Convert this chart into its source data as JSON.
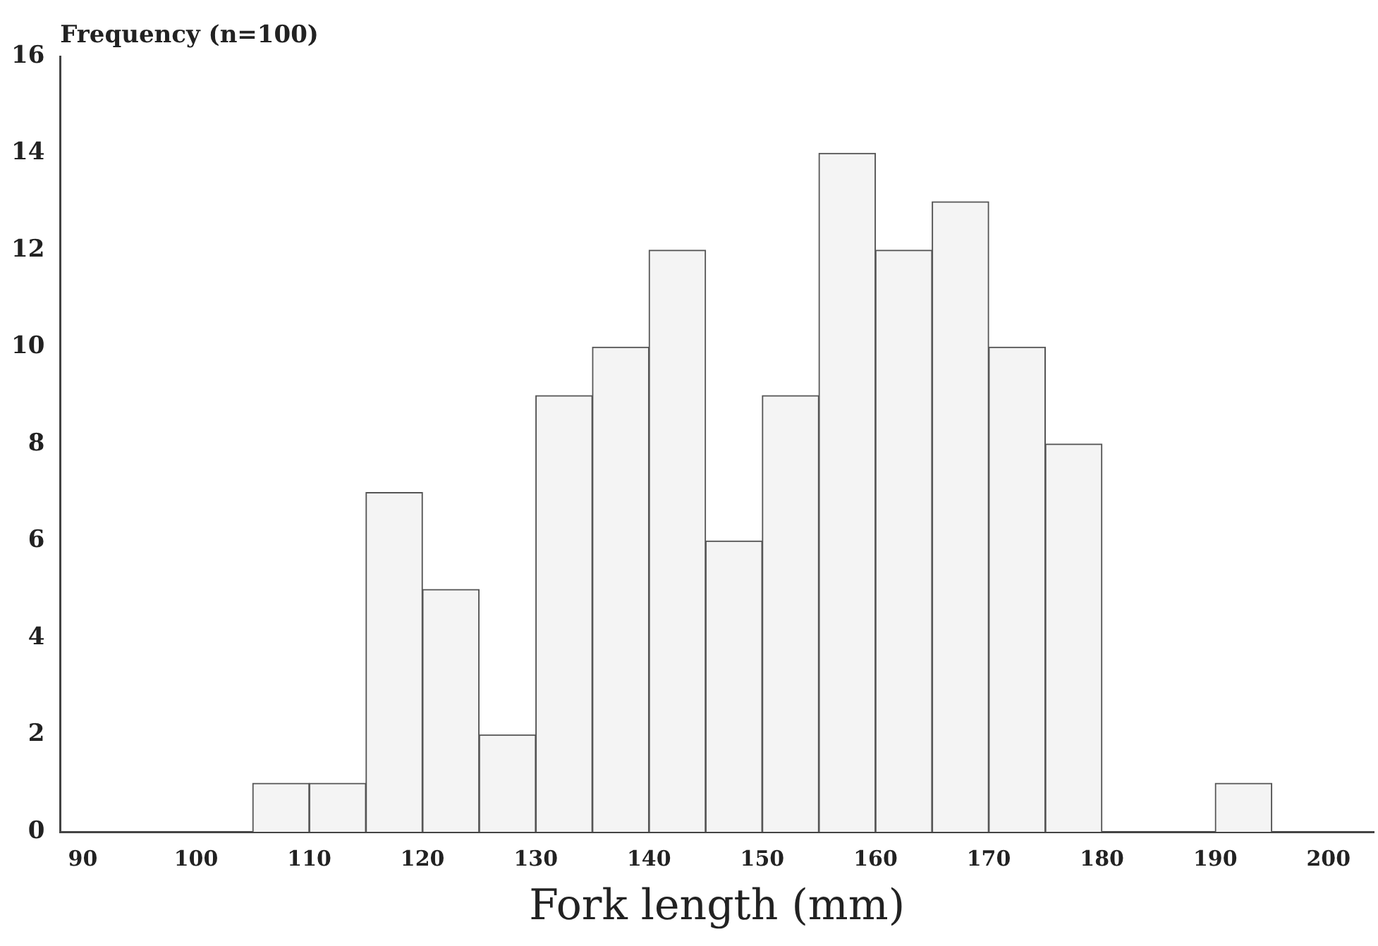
{
  "chart_data": {
    "type": "histogram",
    "ylabel": "Frequency (n=100)",
    "xlabel": "Fork length (mm)",
    "bins": [
      105,
      110,
      115,
      120,
      125,
      130,
      135,
      140,
      145,
      150,
      155,
      160,
      165,
      170,
      175,
      180,
      185,
      190,
      195
    ],
    "values": [
      1,
      1,
      7,
      5,
      2,
      9,
      10,
      12,
      6,
      9,
      14,
      12,
      13,
      10,
      8,
      0,
      0,
      1
    ],
    "color": "#f4f4f4",
    "xlim": [
      88,
      204
    ],
    "xticks": [
      90,
      100,
      110,
      120,
      130,
      140,
      150,
      160,
      170,
      180,
      190,
      200
    ],
    "ylim": [
      0,
      16
    ],
    "yticks": [
      0,
      2,
      4,
      6,
      8,
      10,
      12,
      14,
      16
    ],
    "grid": false,
    "legend": false
  }
}
